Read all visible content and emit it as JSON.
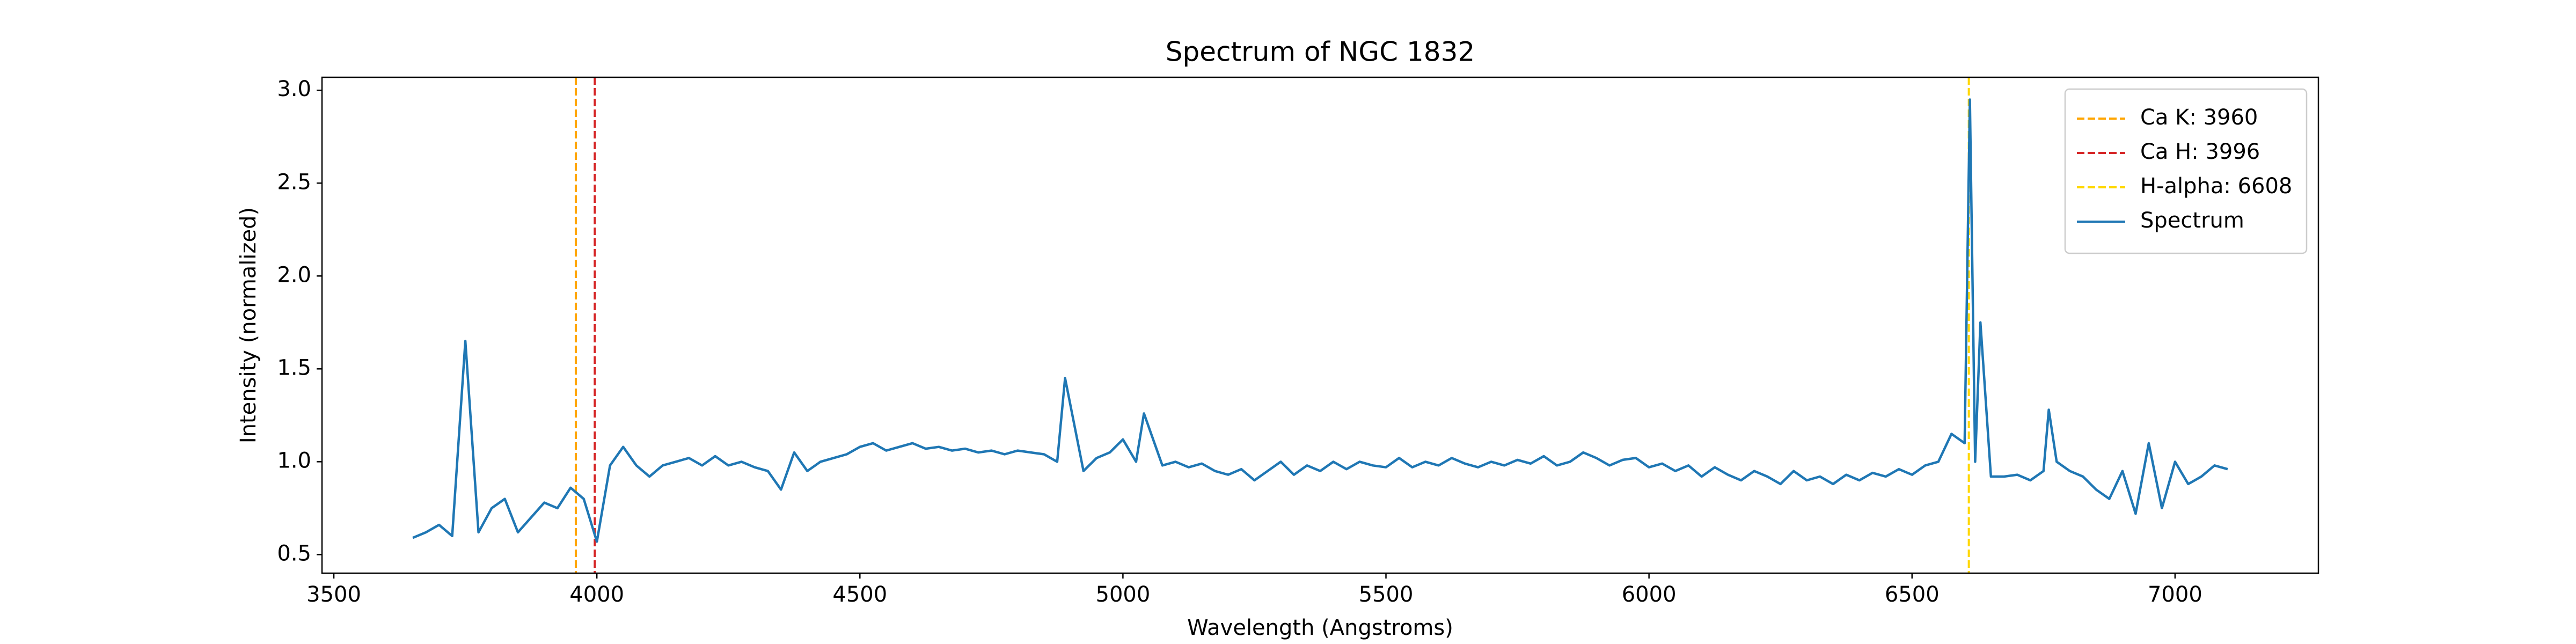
{
  "chart_data": {
    "type": "line",
    "title": "Spectrum of NGC 1832",
    "xlabel": "Wavelength (Angstroms)",
    "ylabel": "Intensity (normalized)",
    "xlim": [
      3477.5,
      7272.5
    ],
    "ylim": [
      0.4,
      3.07
    ],
    "xticks": [
      3500,
      4000,
      4500,
      5000,
      5500,
      6000,
      6500,
      7000
    ],
    "yticks": [
      0.5,
      {
        "value": 1,
        "label": "1.0"
      },
      1.5,
      {
        "value": 2,
        "label": "2.0"
      },
      2.5,
      {
        "value": 3,
        "label": "3.0"
      }
    ],
    "legend": "upper right",
    "vlines": [
      {
        "name": "Ca K: 3960",
        "x": 3960,
        "color": "#ffa500"
      },
      {
        "name": "Ca H: 3996",
        "x": 3996,
        "color": "#d62728"
      },
      {
        "name": "H-alpha: 6608",
        "x": 6608,
        "color": "#ffd700"
      }
    ],
    "series": [
      {
        "name": "Spectrum",
        "color": "#1f77b4",
        "x": [
          3650,
          3675,
          3700,
          3725,
          3750,
          3775,
          3800,
          3825,
          3850,
          3875,
          3900,
          3925,
          3950,
          3975,
          4000,
          4025,
          4050,
          4075,
          4100,
          4125,
          4150,
          4175,
          4200,
          4225,
          4250,
          4275,
          4300,
          4325,
          4350,
          4375,
          4400,
          4425,
          4450,
          4475,
          4500,
          4525,
          4550,
          4575,
          4600,
          4625,
          4650,
          4675,
          4700,
          4725,
          4750,
          4775,
          4800,
          4825,
          4850,
          4875,
          4890,
          4925,
          4950,
          4975,
          5000,
          5025,
          5040,
          5075,
          5100,
          5125,
          5150,
          5175,
          5200,
          5225,
          5250,
          5275,
          5300,
          5325,
          5350,
          5375,
          5400,
          5425,
          5450,
          5475,
          5500,
          5525,
          5550,
          5575,
          5600,
          5625,
          5650,
          5675,
          5700,
          5725,
          5750,
          5775,
          5800,
          5825,
          5850,
          5875,
          5900,
          5925,
          5950,
          5975,
          6000,
          6025,
          6050,
          6075,
          6100,
          6125,
          6150,
          6175,
          6200,
          6225,
          6250,
          6275,
          6300,
          6325,
          6350,
          6375,
          6400,
          6425,
          6450,
          6475,
          6500,
          6525,
          6550,
          6575,
          6600,
          6610,
          6620,
          6630,
          6650,
          6675,
          6700,
          6725,
          6750,
          6760,
          6775,
          6800,
          6825,
          6850,
          6875,
          6900,
          6925,
          6950,
          6975,
          7000,
          7025,
          7050,
          7075,
          7100
        ],
        "values": [
          0.59,
          0.62,
          0.66,
          0.6,
          1.65,
          0.62,
          0.75,
          0.8,
          0.62,
          0.7,
          0.78,
          0.75,
          0.86,
          0.8,
          0.57,
          0.98,
          1.08,
          0.98,
          0.92,
          0.98,
          1.0,
          1.02,
          0.98,
          1.03,
          0.98,
          1.0,
          0.97,
          0.95,
          0.85,
          1.05,
          0.95,
          1.0,
          1.02,
          1.04,
          1.08,
          1.1,
          1.06,
          1.08,
          1.1,
          1.07,
          1.08,
          1.06,
          1.07,
          1.05,
          1.06,
          1.04,
          1.06,
          1.05,
          1.04,
          1.0,
          1.45,
          0.95,
          1.02,
          1.05,
          1.12,
          1.0,
          1.26,
          0.98,
          1.0,
          0.97,
          0.99,
          0.95,
          0.93,
          0.96,
          0.9,
          0.95,
          1.0,
          0.93,
          0.98,
          0.95,
          1.0,
          0.96,
          1.0,
          0.98,
          0.97,
          1.02,
          0.97,
          1.0,
          0.98,
          1.02,
          0.99,
          0.97,
          1.0,
          0.98,
          1.01,
          0.99,
          1.03,
          0.98,
          1.0,
          1.05,
          1.02,
          0.98,
          1.01,
          1.02,
          0.97,
          0.99,
          0.95,
          0.98,
          0.92,
          0.97,
          0.93,
          0.9,
          0.95,
          0.92,
          0.88,
          0.95,
          0.9,
          0.92,
          0.88,
          0.93,
          0.9,
          0.94,
          0.92,
          0.96,
          0.93,
          0.98,
          1.0,
          1.15,
          1.1,
          2.95,
          1.0,
          1.75,
          0.92,
          0.92,
          0.93,
          0.9,
          0.95,
          1.28,
          1.0,
          0.95,
          0.92,
          0.85,
          0.8,
          0.95,
          0.72,
          1.1,
          0.75,
          1.0,
          0.88,
          0.92,
          0.98,
          0.96
        ]
      }
    ]
  }
}
